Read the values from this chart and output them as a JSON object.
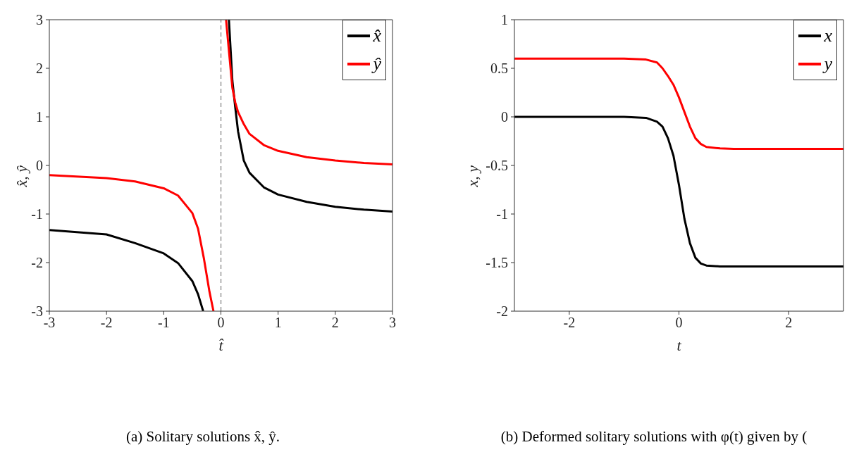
{
  "chart_data": [
    {
      "type": "line",
      "title": "(a) Solitary solutions x̂, ŷ.",
      "xlabel": "t̂",
      "ylabel": "x̂, ŷ",
      "xlim": [
        -3,
        3
      ],
      "ylim": [
        -3,
        3
      ],
      "xticks": [
        -3,
        -2,
        -1,
        0,
        1,
        2,
        3
      ],
      "yticks": [
        -3,
        -2,
        -1,
        0,
        1,
        2,
        3
      ],
      "grid": false,
      "legend": "top right",
      "marker": "none",
      "line_style": "solid",
      "ref_lines": [
        {
          "axis": "x",
          "value": 0,
          "color": "#999999",
          "line_style": "dashed"
        }
      ],
      "series": [
        {
          "name": "x̂",
          "color": "#000000",
          "x": [
            -3,
            -2,
            -1.5,
            -1,
            -0.75,
            -0.5,
            -0.4,
            -0.31,
            0,
            0.14,
            0.2,
            0.25,
            0.3,
            0.4,
            0.5,
            0.75,
            1,
            1.5,
            2,
            2.5,
            3
          ],
          "values": [
            -1.33,
            -1.42,
            -1.6,
            -1.81,
            -2.01,
            -2.38,
            -2.65,
            -3,
            null,
            3,
            1.75,
            1.2,
            0.7,
            0.1,
            -0.15,
            -0.45,
            -0.6,
            -0.75,
            -0.85,
            -0.91,
            -0.95
          ]
        },
        {
          "name": "ŷ",
          "color": "#ff0000",
          "x": [
            -3,
            -2,
            -1.5,
            -1,
            -0.75,
            -0.5,
            -0.4,
            -0.3,
            -0.2,
            -0.13,
            0,
            0.09,
            0.2,
            0.25,
            0.3,
            0.4,
            0.5,
            0.75,
            1,
            1.5,
            2,
            2.5,
            3
          ],
          "values": [
            -0.2,
            -0.26,
            -0.33,
            -0.47,
            -0.62,
            -0.98,
            -1.3,
            -1.9,
            -2.6,
            -3,
            null,
            3,
            1.6,
            1.3,
            1.1,
            0.85,
            0.65,
            0.42,
            0.3,
            0.17,
            0.1,
            0.05,
            0.02
          ]
        }
      ]
    },
    {
      "type": "line",
      "title": "(b) Deformed solitary solutions with φ(t) given by (",
      "xlabel": "t",
      "ylabel": "x, y",
      "xlim": [
        -3,
        3
      ],
      "ylim": [
        -2,
        1
      ],
      "xticks": [
        -2,
        0,
        2
      ],
      "yticks": [
        -2,
        -1.5,
        -1,
        -0.5,
        0,
        0.5,
        1
      ],
      "grid": false,
      "legend": "top right",
      "marker": "none",
      "line_style": "solid",
      "series": [
        {
          "name": "x",
          "color": "#000000",
          "x": [
            -3,
            -1,
            -0.6,
            -0.4,
            -0.3,
            -0.2,
            -0.1,
            0,
            0.1,
            0.2,
            0.3,
            0.4,
            0.5,
            0.75,
            3
          ],
          "values": [
            0,
            0,
            -0.01,
            -0.05,
            -0.1,
            -0.22,
            -0.4,
            -0.7,
            -1.05,
            -1.3,
            -1.45,
            -1.51,
            -1.53,
            -1.54,
            -1.54
          ]
        },
        {
          "name": "y",
          "color": "#ff0000",
          "x": [
            -3,
            -1,
            -0.6,
            -0.4,
            -0.3,
            -0.2,
            -0.1,
            0,
            0.1,
            0.2,
            0.3,
            0.4,
            0.5,
            0.75,
            1,
            3
          ],
          "values": [
            0.6,
            0.6,
            0.59,
            0.56,
            0.5,
            0.42,
            0.33,
            0.2,
            0.05,
            -0.1,
            -0.22,
            -0.28,
            -0.31,
            -0.325,
            -0.33,
            -0.33
          ]
        }
      ]
    }
  ]
}
